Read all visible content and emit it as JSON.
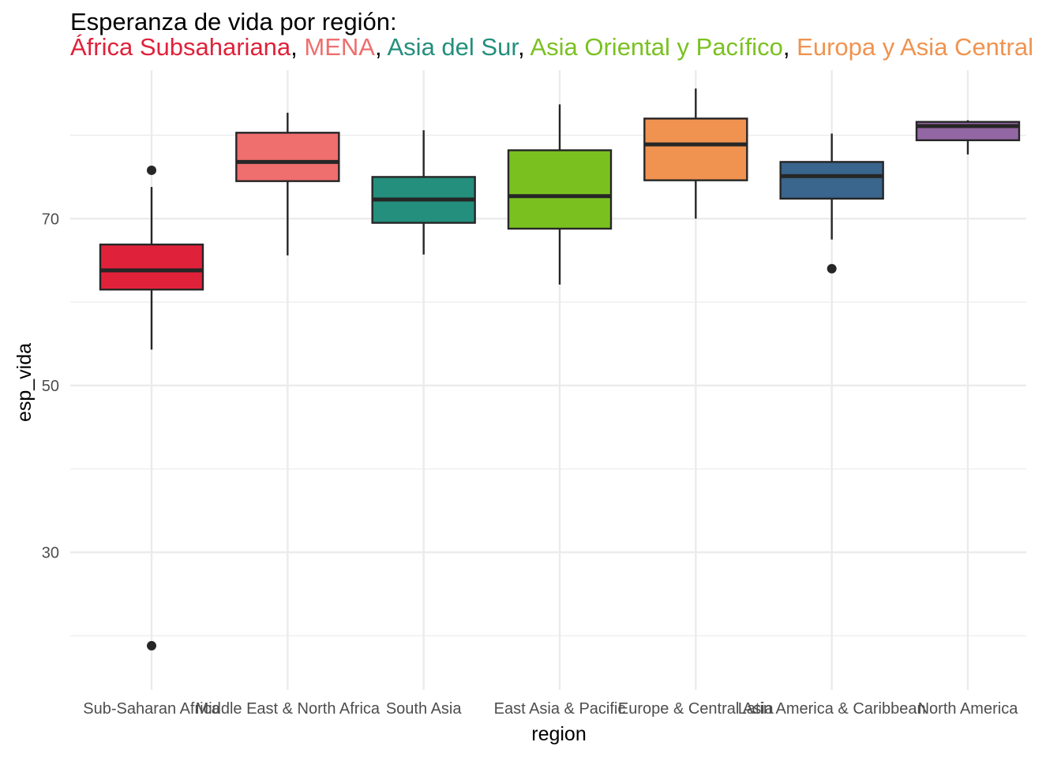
{
  "chart_data": {
    "type": "boxplot",
    "title": "Esperanza de vida por región:",
    "subtitle_parts": [
      {
        "text": "África Subsahariana",
        "color": "#E0213A"
      },
      {
        "text": ", ",
        "color": "#000000"
      },
      {
        "text": "MENA",
        "color": "#EF6E6E"
      },
      {
        "text": ", ",
        "color": "#000000"
      },
      {
        "text": "Asia del Sur",
        "color": "#238F7C"
      },
      {
        "text": ", ",
        "color": "#000000"
      },
      {
        "text": "Asia Oriental y Pacífico",
        "color": "#7AC120"
      },
      {
        "text": ", ",
        "color": "#000000"
      },
      {
        "text": "Europa y Asia Central",
        "color": "#F09350"
      }
    ],
    "xlabel": "region",
    "ylabel": "esp_vida",
    "ylim": [
      13.5,
      87.8
    ],
    "yticks": [
      30,
      50,
      70
    ],
    "grid": true,
    "categories": [
      "Sub-Saharan Africa",
      "Middle East & North Africa",
      "South Asia",
      "East Asia & Pacific",
      "Europe & Central Asia",
      "Latin America & Caribbean",
      "North America"
    ],
    "boxes": [
      {
        "whisker_low": 54.3,
        "q1": 61.5,
        "median": 63.8,
        "q3": 66.9,
        "whisker_high": 73.8,
        "outliers": [
          75.8,
          18.8
        ],
        "color": "#E0213A"
      },
      {
        "whisker_low": 65.6,
        "q1": 74.5,
        "median": 76.8,
        "q3": 80.3,
        "whisker_high": 82.7,
        "outliers": [],
        "color": "#EF6E6E"
      },
      {
        "whisker_low": 65.7,
        "q1": 69.5,
        "median": 72.3,
        "q3": 75.0,
        "whisker_high": 80.6,
        "outliers": [],
        "color": "#238F7C"
      },
      {
        "whisker_low": 62.1,
        "q1": 68.8,
        "median": 72.7,
        "q3": 78.2,
        "whisker_high": 83.7,
        "outliers": [],
        "color": "#7AC120"
      },
      {
        "whisker_low": 70.0,
        "q1": 74.6,
        "median": 78.9,
        "q3": 82.0,
        "whisker_high": 85.6,
        "outliers": [],
        "color": "#F09350"
      },
      {
        "whisker_low": 67.5,
        "q1": 72.4,
        "median": 75.1,
        "q3": 76.8,
        "whisker_high": 80.2,
        "outliers": [
          64.0
        ],
        "color": "#3A658C"
      },
      {
        "whisker_low": 77.7,
        "q1": 79.4,
        "median": 81.1,
        "q3": 81.6,
        "whisker_high": 81.8,
        "outliers": [],
        "color": "#9367A3"
      }
    ]
  }
}
